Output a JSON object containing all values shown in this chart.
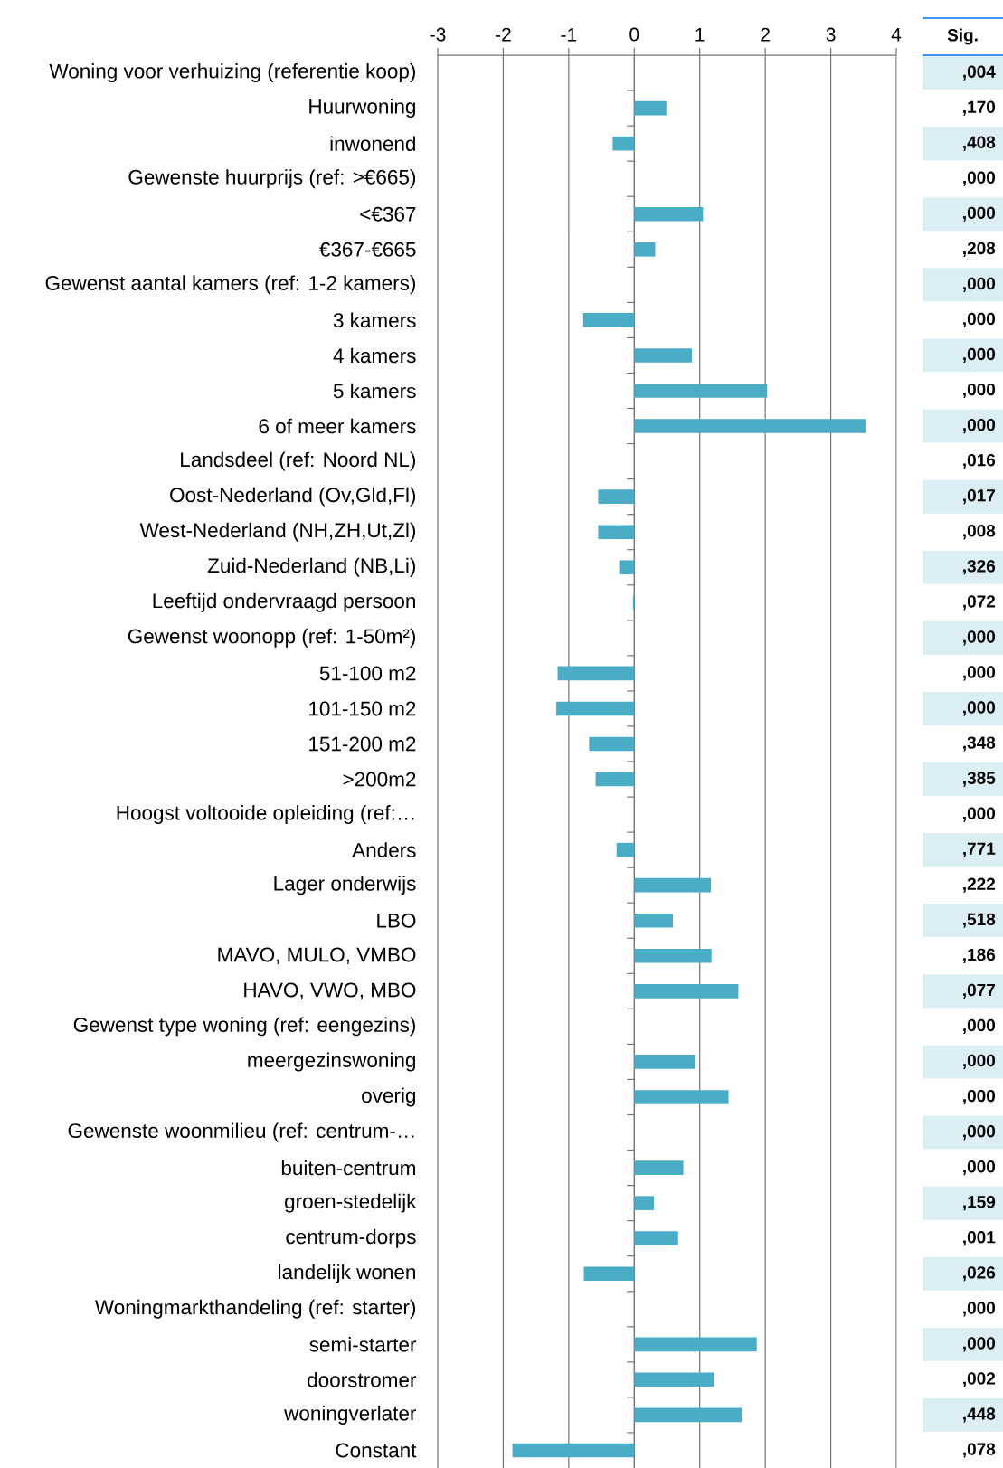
{
  "chart_data": [
    {
      "type": "bar",
      "orientation": "horizontal",
      "color": "#4bacc6",
      "grid": "x",
      "xlim": [
        -3,
        4
      ],
      "xticks": [
        -3,
        -2,
        -1,
        0,
        1,
        2,
        3,
        4
      ],
      "categories": [
        "Woning voor verhuizing (referentie koop)",
        "Huurwoning",
        "inwonend",
        "Gewenste huurprijs (ref: >€665)",
        "<€367",
        "€367-€665",
        "Gewenst aantal kamers (ref: 1-2 kamers)",
        "3 kamers",
        "4 kamers",
        "5 kamers",
        "6 of meer kamers",
        "Landsdeel (ref: Noord NL)",
        "Oost-Nederland (Ov,Gld,Fl)",
        "West-Nederland (NH,ZH,Ut,Zl)",
        "Zuid-Nederland (NB,Li)",
        "Leeftijd ondervraagd persoon",
        "Gewenst woonopp (ref: 1-50m²)",
        "51-100 m2",
        "101-150 m2",
        "151-200 m2",
        ">200m2",
        "Hoogst voltooide opleiding (ref:…",
        "Anders",
        "Lager onderwijs",
        "LBO",
        "MAVO, MULO, VMBO",
        "HAVO, VWO, MBO",
        "Gewenst type woning (ref: eengezins)",
        "meergezinswoning",
        "overig",
        "Gewenste woonmilieu (ref: centrum-…",
        "buiten-centrum",
        "groen-stedelijk",
        "centrum-dorps",
        "landelijk wonen",
        "Woningmarkthandeling (ref: starter)",
        "semi-starter",
        "doorstromer",
        "woningverlater",
        "Constant"
      ],
      "values": [
        null,
        0.49,
        -0.33,
        null,
        1.05,
        0.32,
        null,
        -0.78,
        0.88,
        2.03,
        3.53,
        null,
        -0.55,
        -0.55,
        -0.23,
        -0.02,
        null,
        -1.17,
        -1.19,
        -0.69,
        -0.59,
        null,
        -0.27,
        1.17,
        0.59,
        1.18,
        1.59,
        null,
        0.93,
        1.44,
        null,
        0.75,
        0.3,
        0.67,
        -0.77,
        null,
        1.87,
        1.22,
        1.64,
        -1.86
      ]
    },
    {
      "type": "other",
      "title": "Sig.",
      "color": "#dbeef4",
      "categories": [
        ",004",
        ",170",
        ",408",
        ",000",
        ",000",
        ",208",
        ",000",
        ",000",
        ",000",
        ",000",
        ",000",
        ",016",
        ",017",
        ",008",
        ",326",
        ",072",
        ",000",
        ",000",
        ",000",
        ",348",
        ",385",
        ",000",
        ",771",
        ",222",
        ",518",
        ",186",
        ",077",
        ",000",
        ",000",
        ",000",
        ",000",
        ",000",
        ",159",
        ",001",
        ",026",
        ",000",
        ",000",
        ",002",
        ",448",
        ",078"
      ]
    }
  ]
}
